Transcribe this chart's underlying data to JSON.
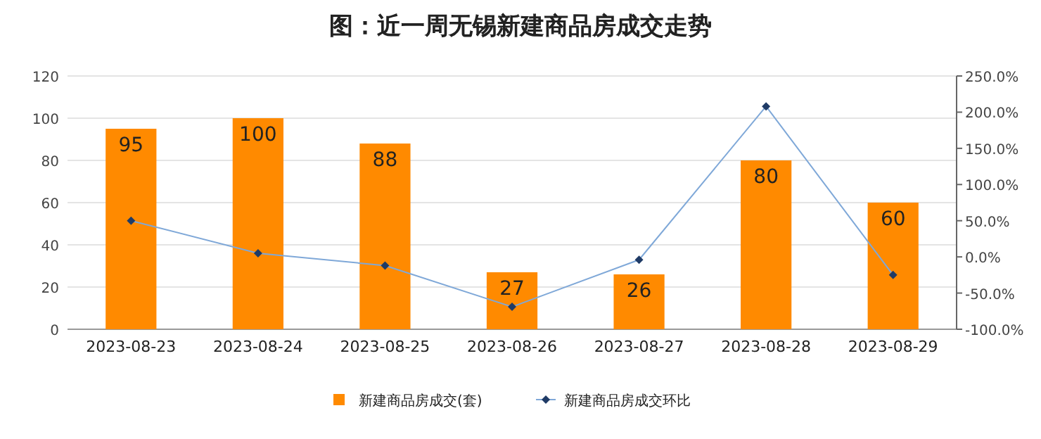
{
  "chart_data": {
    "type": "bar",
    "title": "图：近一周无锡新建商品房成交走势",
    "categories": [
      "2023-08-23",
      "2023-08-24",
      "2023-08-25",
      "2023-08-26",
      "2023-08-27",
      "2023-08-28",
      "2023-08-29"
    ],
    "series": [
      {
        "name": "新建商品房成交(套)",
        "color": "#ff8a00",
        "values": [
          95,
          100,
          88,
          27,
          26,
          80,
          60
        ],
        "value_labels": [
          "95",
          "100",
          "88",
          "27",
          "26",
          "80",
          "60"
        ]
      },
      {
        "name": "新建商品房成交环比",
        "type": "line",
        "axis": "y2",
        "color": "#7fa8d8",
        "values": [
          50,
          5,
          -12,
          -69,
          -4,
          208,
          -25
        ]
      }
    ],
    "ylim": [
      0,
      120
    ],
    "yticks": [
      0,
      20,
      40,
      60,
      80,
      100,
      120
    ],
    "y2lim": [
      -100,
      250
    ],
    "y2ticks": [
      {
        "value": -100,
        "label": "-100.0%"
      },
      {
        "value": -50,
        "label": "-50.0%"
      },
      {
        "value": 0,
        "label": "0.0%"
      },
      {
        "value": 50,
        "label": "50.0%"
      },
      {
        "value": 100,
        "label": "100.0%"
      },
      {
        "value": 150,
        "label": "150.0%"
      },
      {
        "value": 200,
        "label": "200.0%"
      },
      {
        "value": 250,
        "label": "250.0%"
      }
    ],
    "grid": "y",
    "legend": "bottom",
    "marker": "diamond",
    "line_style": "solid"
  }
}
